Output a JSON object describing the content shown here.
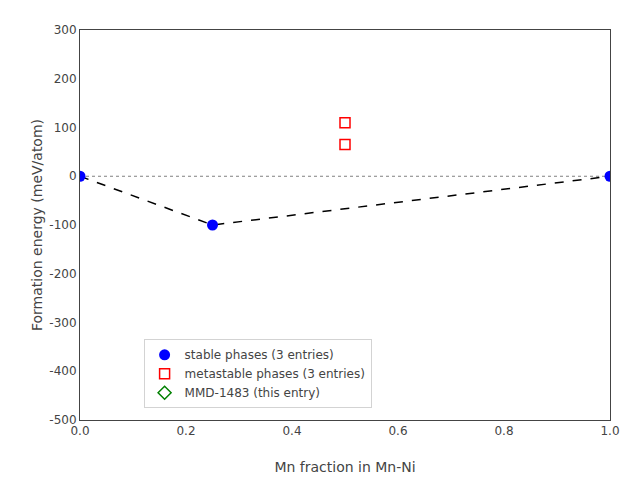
{
  "chart_data": {
    "type": "scatter",
    "x_label": "Mn fraction in Mn-Ni",
    "y_label": "Formation energy (meV/atom)",
    "xlim": [
      0.0,
      1.0
    ],
    "ylim": [
      -500,
      300
    ],
    "xticks": [
      {
        "value": 0.0,
        "label": "0.0"
      },
      0.2,
      0.4,
      0.6,
      0.8,
      {
        "value": 1.0,
        "label": "1.0"
      }
    ],
    "yticks": [
      -500,
      -400,
      -300,
      -200,
      -100,
      0,
      100,
      200,
      300
    ],
    "grid": false,
    "legend": "lower left",
    "series": [
      {
        "type": "hline",
        "color": "gray",
        "line_style": "dotted",
        "values": [
          0.0
        ]
      },
      {
        "type": "line",
        "color": "black",
        "line_style": "dashed",
        "x": [
          0.0,
          0.25,
          1.0
        ],
        "values": [
          0.0,
          -100.0,
          0.0
        ]
      },
      {
        "name": "stable phases (3 entries)",
        "type": "scatter",
        "color": "blue",
        "marker": "circle",
        "x": [
          0.0,
          0.25,
          1.0
        ],
        "values": [
          0.0,
          -100.0,
          0.0
        ]
      },
      {
        "name": "metastable phases (3 entries)",
        "type": "scatter",
        "color": "red",
        "marker": "square-open",
        "x": [
          0.5,
          0.5
        ],
        "values": [
          110.0,
          65.0
        ]
      },
      {
        "name": "MMD-1483 (this entry)",
        "type": "scatter",
        "color": "green",
        "marker": "diamond-open",
        "x": [],
        "values": []
      }
    ]
  }
}
